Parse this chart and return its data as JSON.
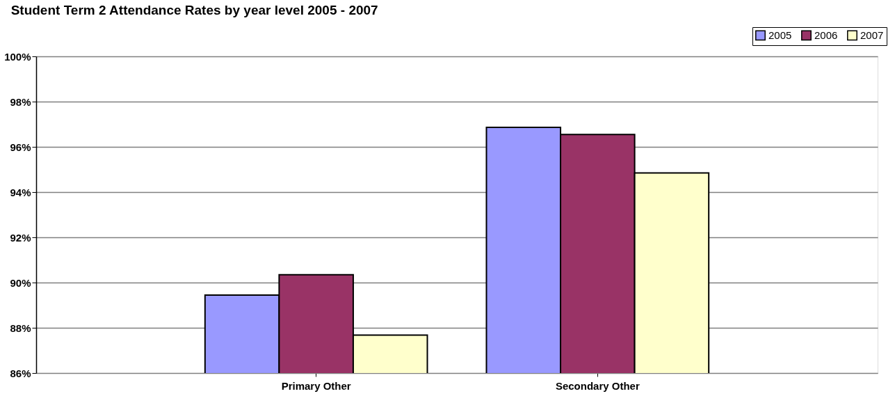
{
  "chart_data": {
    "type": "bar",
    "title": "Student Term 2 Attendance Rates by year level  2005 - 2007",
    "categories": [
      "Primary Other",
      "Secondary Other"
    ],
    "series": [
      {
        "name": "2005",
        "color": "#9999ff",
        "values": [
          89.45,
          96.86
        ]
      },
      {
        "name": "2006",
        "color": "#993366",
        "values": [
          90.35,
          96.55
        ]
      },
      {
        "name": "2007",
        "color": "#ffffcc",
        "values": [
          87.68,
          94.85
        ]
      }
    ],
    "ylim": [
      86,
      100
    ],
    "yticks": [
      {
        "value": 86,
        "label": "86%"
      },
      {
        "value": 88,
        "label": "88%"
      },
      {
        "value": 90,
        "label": "90%"
      },
      {
        "value": 92,
        "label": "92%"
      },
      {
        "value": 94,
        "label": "94%"
      },
      {
        "value": 96,
        "label": "96%"
      },
      {
        "value": 98,
        "label": "98%"
      },
      {
        "value": 100,
        "label": "100%"
      }
    ],
    "grid": "y",
    "legend": "top right"
  }
}
